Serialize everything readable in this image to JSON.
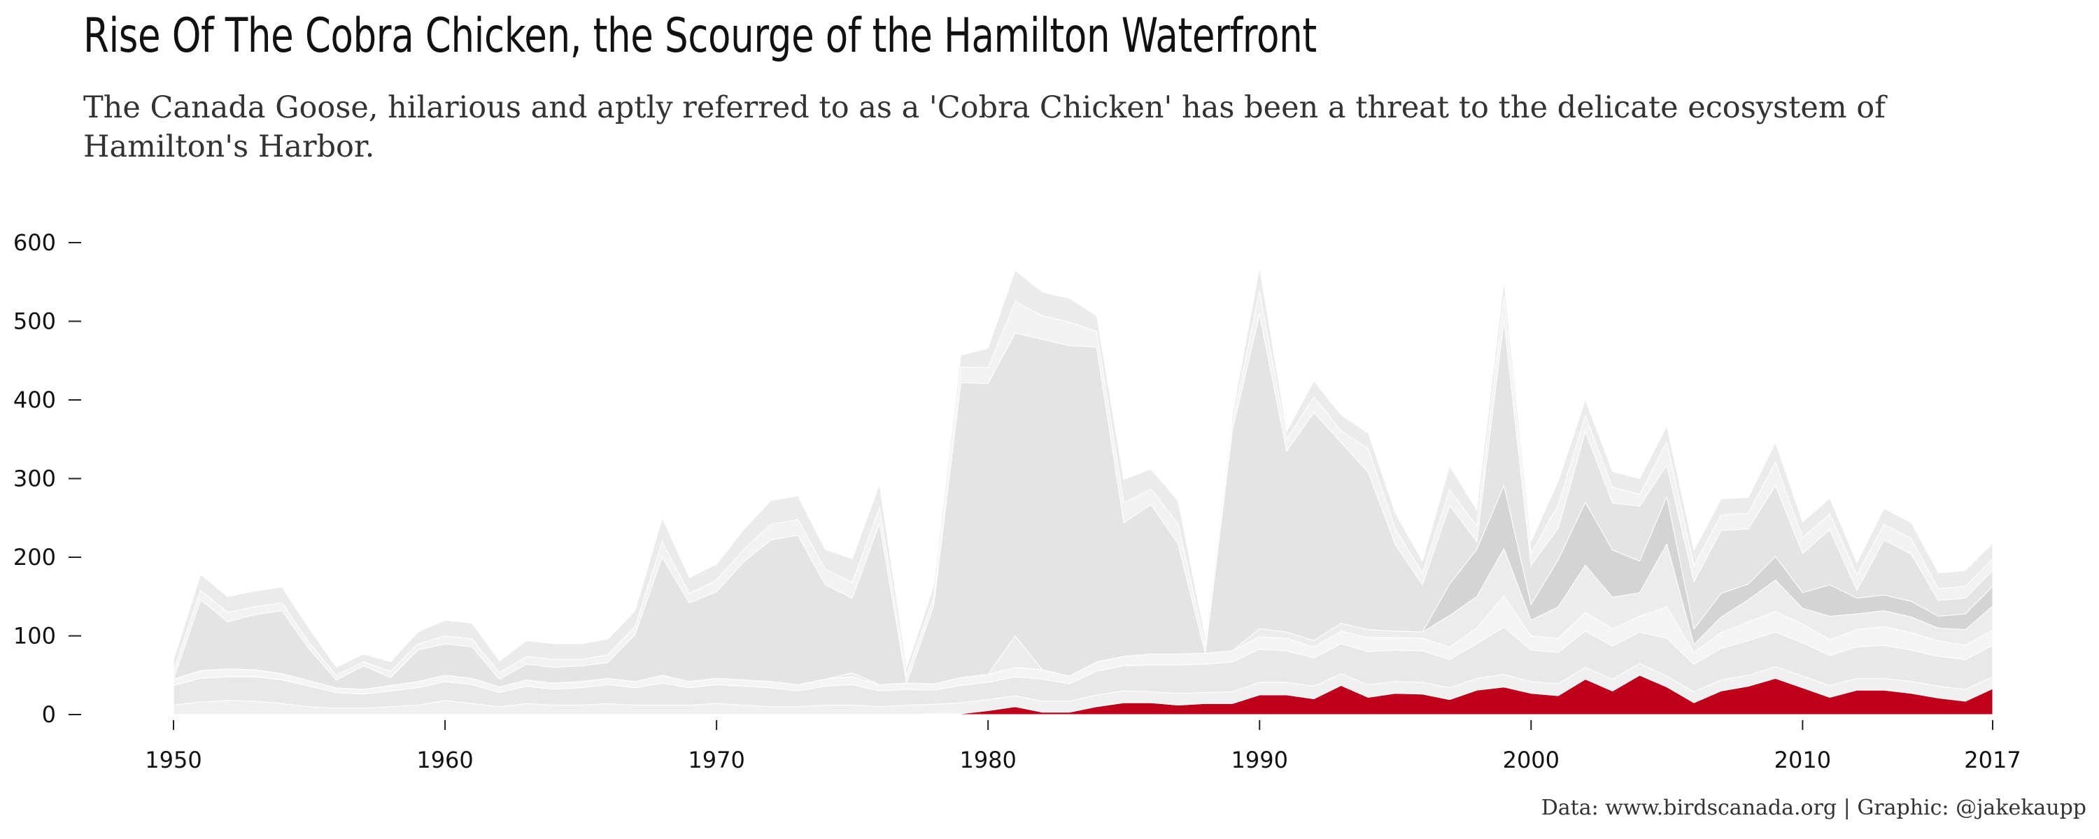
{
  "header": {
    "title": "Rise Of The Cobra Chicken, the Scourge of the Hamilton Waterfront",
    "subtitle": "The Canada Goose, hilarious and aptly referred to as a 'Cobra Chicken' has been a threat to the delicate ecosystem of Hamilton's Harbor."
  },
  "footer": {
    "caption": "Data: www.birdscanada.org | Graphic: @jakekaupp"
  },
  "colors": {
    "highlight": "#c0001a",
    "background_series": [
      "#f0f0f0",
      "#e8e8e8",
      "#f4f4f4",
      "#ececec",
      "#d4d4d4",
      "#e4e4e4",
      "#f2f2f2",
      "#ebebeb"
    ]
  },
  "chart_data": {
    "type": "area",
    "stacked": true,
    "highlight_series": "Canada Goose",
    "x": [
      1950,
      1951,
      1952,
      1953,
      1954,
      1955,
      1956,
      1957,
      1958,
      1959,
      1960,
      1961,
      1962,
      1963,
      1964,
      1965,
      1966,
      1967,
      1968,
      1969,
      1970,
      1971,
      1972,
      1973,
      1974,
      1975,
      1976,
      1977,
      1978,
      1979,
      1980,
      1981,
      1982,
      1983,
      1984,
      1985,
      1986,
      1987,
      1988,
      1989,
      1990,
      1991,
      1992,
      1993,
      1994,
      1995,
      1996,
      1997,
      1998,
      1999,
      2000,
      2001,
      2002,
      2003,
      2004,
      2005,
      2006,
      2007,
      2008,
      2009,
      2010,
      2011,
      2012,
      2013,
      2014,
      2015,
      2016,
      2017
    ],
    "series": [
      {
        "values": [
          0,
          0,
          0,
          0,
          0,
          0,
          0,
          0,
          0,
          0,
          0,
          0,
          0,
          0,
          0,
          0,
          0,
          0,
          0,
          0,
          0,
          0,
          0,
          0,
          0,
          0,
          0,
          0,
          1,
          1,
          5,
          10,
          3,
          3,
          10,
          15,
          15,
          12,
          14,
          14,
          25,
          25,
          20,
          37,
          22,
          27,
          26,
          19,
          31,
          35,
          27,
          24,
          45,
          30,
          50,
          35,
          15,
          30,
          36,
          46,
          34,
          22,
          31,
          31,
          27,
          21,
          17,
          33
        ]
      },
      {
        "values": [
          12,
          16,
          18,
          17,
          14,
          10,
          8,
          8,
          10,
          12,
          18,
          14,
          10,
          14,
          12,
          12,
          14,
          12,
          12,
          12,
          14,
          12,
          10,
          10,
          12,
          12,
          10,
          12,
          12,
          14,
          14,
          14,
          14,
          14,
          15,
          15,
          14,
          15,
          14,
          15,
          16,
          16,
          16,
          15,
          16,
          15,
          15,
          15,
          15,
          16,
          15,
          15,
          15,
          15,
          15,
          14,
          14,
          14,
          14,
          15,
          15,
          15,
          15,
          15,
          15,
          15,
          15,
          15
        ]
      },
      {
        "values": [
          25,
          30,
          30,
          31,
          30,
          26,
          20,
          18,
          20,
          22,
          24,
          24,
          18,
          22,
          20,
          22,
          24,
          22,
          28,
          22,
          24,
          24,
          24,
          20,
          24,
          26,
          20,
          20,
          18,
          22,
          22,
          24,
          28,
          22,
          30,
          32,
          34,
          36,
          36,
          38,
          42,
          40,
          36,
          38,
          42,
          40,
          40,
          36,
          44,
          60,
          40,
          40,
          46,
          42,
          40,
          48,
          35,
          40,
          44,
          44,
          42,
          38,
          40,
          42,
          40,
          38,
          38,
          40
        ]
      },
      {
        "values": [
          8,
          10,
          10,
          9,
          8,
          7,
          6,
          6,
          7,
          8,
          8,
          8,
          7,
          8,
          8,
          8,
          8,
          8,
          10,
          8,
          8,
          8,
          8,
          8,
          9,
          10,
          8,
          8,
          8,
          10,
          10,
          12,
          12,
          10,
          12,
          12,
          14,
          14,
          14,
          14,
          16,
          16,
          14,
          16,
          18,
          16,
          16,
          16,
          20,
          40,
          18,
          18,
          24,
          22,
          20,
          40,
          15,
          20,
          24,
          26,
          24,
          20,
          22,
          24,
          22,
          20,
          18,
          20
        ]
      },
      {
        "values": [
          0,
          0,
          0,
          0,
          0,
          0,
          0,
          0,
          0,
          0,
          0,
          0,
          0,
          0,
          0,
          0,
          0,
          0,
          0,
          0,
          0,
          0,
          0,
          0,
          0,
          5,
          0,
          0,
          0,
          0,
          0,
          40,
          0,
          0,
          0,
          0,
          0,
          0,
          0,
          0,
          10,
          8,
          8,
          10,
          10,
          8,
          8,
          40,
          40,
          60,
          20,
          40,
          60,
          40,
          30,
          80,
          10,
          20,
          28,
          40,
          20,
          30,
          20,
          20,
          20,
          16,
          20,
          30
        ]
      },
      {
        "values": [
          0,
          0,
          0,
          0,
          0,
          0,
          0,
          0,
          0,
          0,
          0,
          0,
          0,
          0,
          0,
          0,
          0,
          0,
          0,
          0,
          0,
          0,
          0,
          0,
          0,
          0,
          0,
          0,
          0,
          0,
          0,
          0,
          0,
          0,
          0,
          0,
          0,
          0,
          0,
          0,
          0,
          0,
          0,
          0,
          0,
          0,
          0,
          40,
          60,
          80,
          20,
          60,
          80,
          60,
          40,
          60,
          20,
          30,
          20,
          30,
          20,
          40,
          20,
          20,
          20,
          15,
          20,
          25
        ]
      },
      {
        "values": [
          0,
          90,
          60,
          70,
          80,
          40,
          10,
          30,
          10,
          40,
          40,
          40,
          10,
          20,
          20,
          20,
          20,
          60,
          150,
          100,
          110,
          150,
          180,
          190,
          120,
          95,
          205,
          0,
          100,
          375,
          370,
          385,
          420,
          420,
          400,
          170,
          190,
          140,
          0,
          280,
          400,
          230,
          290,
          230,
          200,
          110,
          60,
          100,
          10,
          210,
          50,
          40,
          90,
          60,
          70,
          40,
          60,
          80,
          70,
          90,
          50,
          70,
          10,
          70,
          60,
          20,
          20,
          20
        ]
      },
      {
        "values": [
          10,
          12,
          12,
          10,
          10,
          8,
          6,
          5,
          8,
          8,
          10,
          10,
          8,
          10,
          10,
          8,
          10,
          10,
          20,
          12,
          15,
          16,
          20,
          20,
          20,
          20,
          20,
          10,
          10,
          20,
          20,
          40,
          30,
          30,
          20,
          25,
          20,
          25,
          10,
          10,
          30,
          15,
          20,
          15,
          30,
          20,
          15,
          20,
          20,
          30,
          15,
          30,
          20,
          20,
          15,
          30,
          20,
          20,
          20,
          30,
          20,
          20,
          20,
          20,
          20,
          15,
          15,
          15
        ]
      },
      {
        "values": [
          15,
          20,
          20,
          20,
          20,
          18,
          10,
          10,
          12,
          15,
          20,
          20,
          15,
          20,
          20,
          20,
          20,
          20,
          30,
          20,
          20,
          25,
          30,
          30,
          25,
          30,
          30,
          10,
          15,
          15,
          25,
          40,
          30,
          30,
          20,
          30,
          25,
          30,
          10,
          10,
          30,
          10,
          20,
          20,
          20,
          20,
          15,
          30,
          20,
          20,
          15,
          30,
          20,
          20,
          20,
          20,
          20,
          20,
          20,
          25,
          20,
          20,
          15,
          20,
          20,
          20,
          20,
          20
        ]
      }
    ],
    "xlim": [
      1950,
      2017
    ],
    "ylim": [
      0,
      650
    ],
    "x_ticks": [
      "1950",
      "1960",
      "1970",
      "1980",
      "1990",
      "2000",
      "2010",
      "2017"
    ],
    "x_tick_values": [
      1950,
      1960,
      1970,
      1980,
      1990,
      2000,
      2010,
      2017
    ],
    "y_ticks": [
      "0",
      "100",
      "200",
      "300",
      "400",
      "500",
      "600"
    ],
    "y_tick_values": [
      0,
      100,
      200,
      300,
      400,
      500,
      600
    ],
    "xlabel": "",
    "ylabel": "",
    "grid": false,
    "legend": "none"
  }
}
